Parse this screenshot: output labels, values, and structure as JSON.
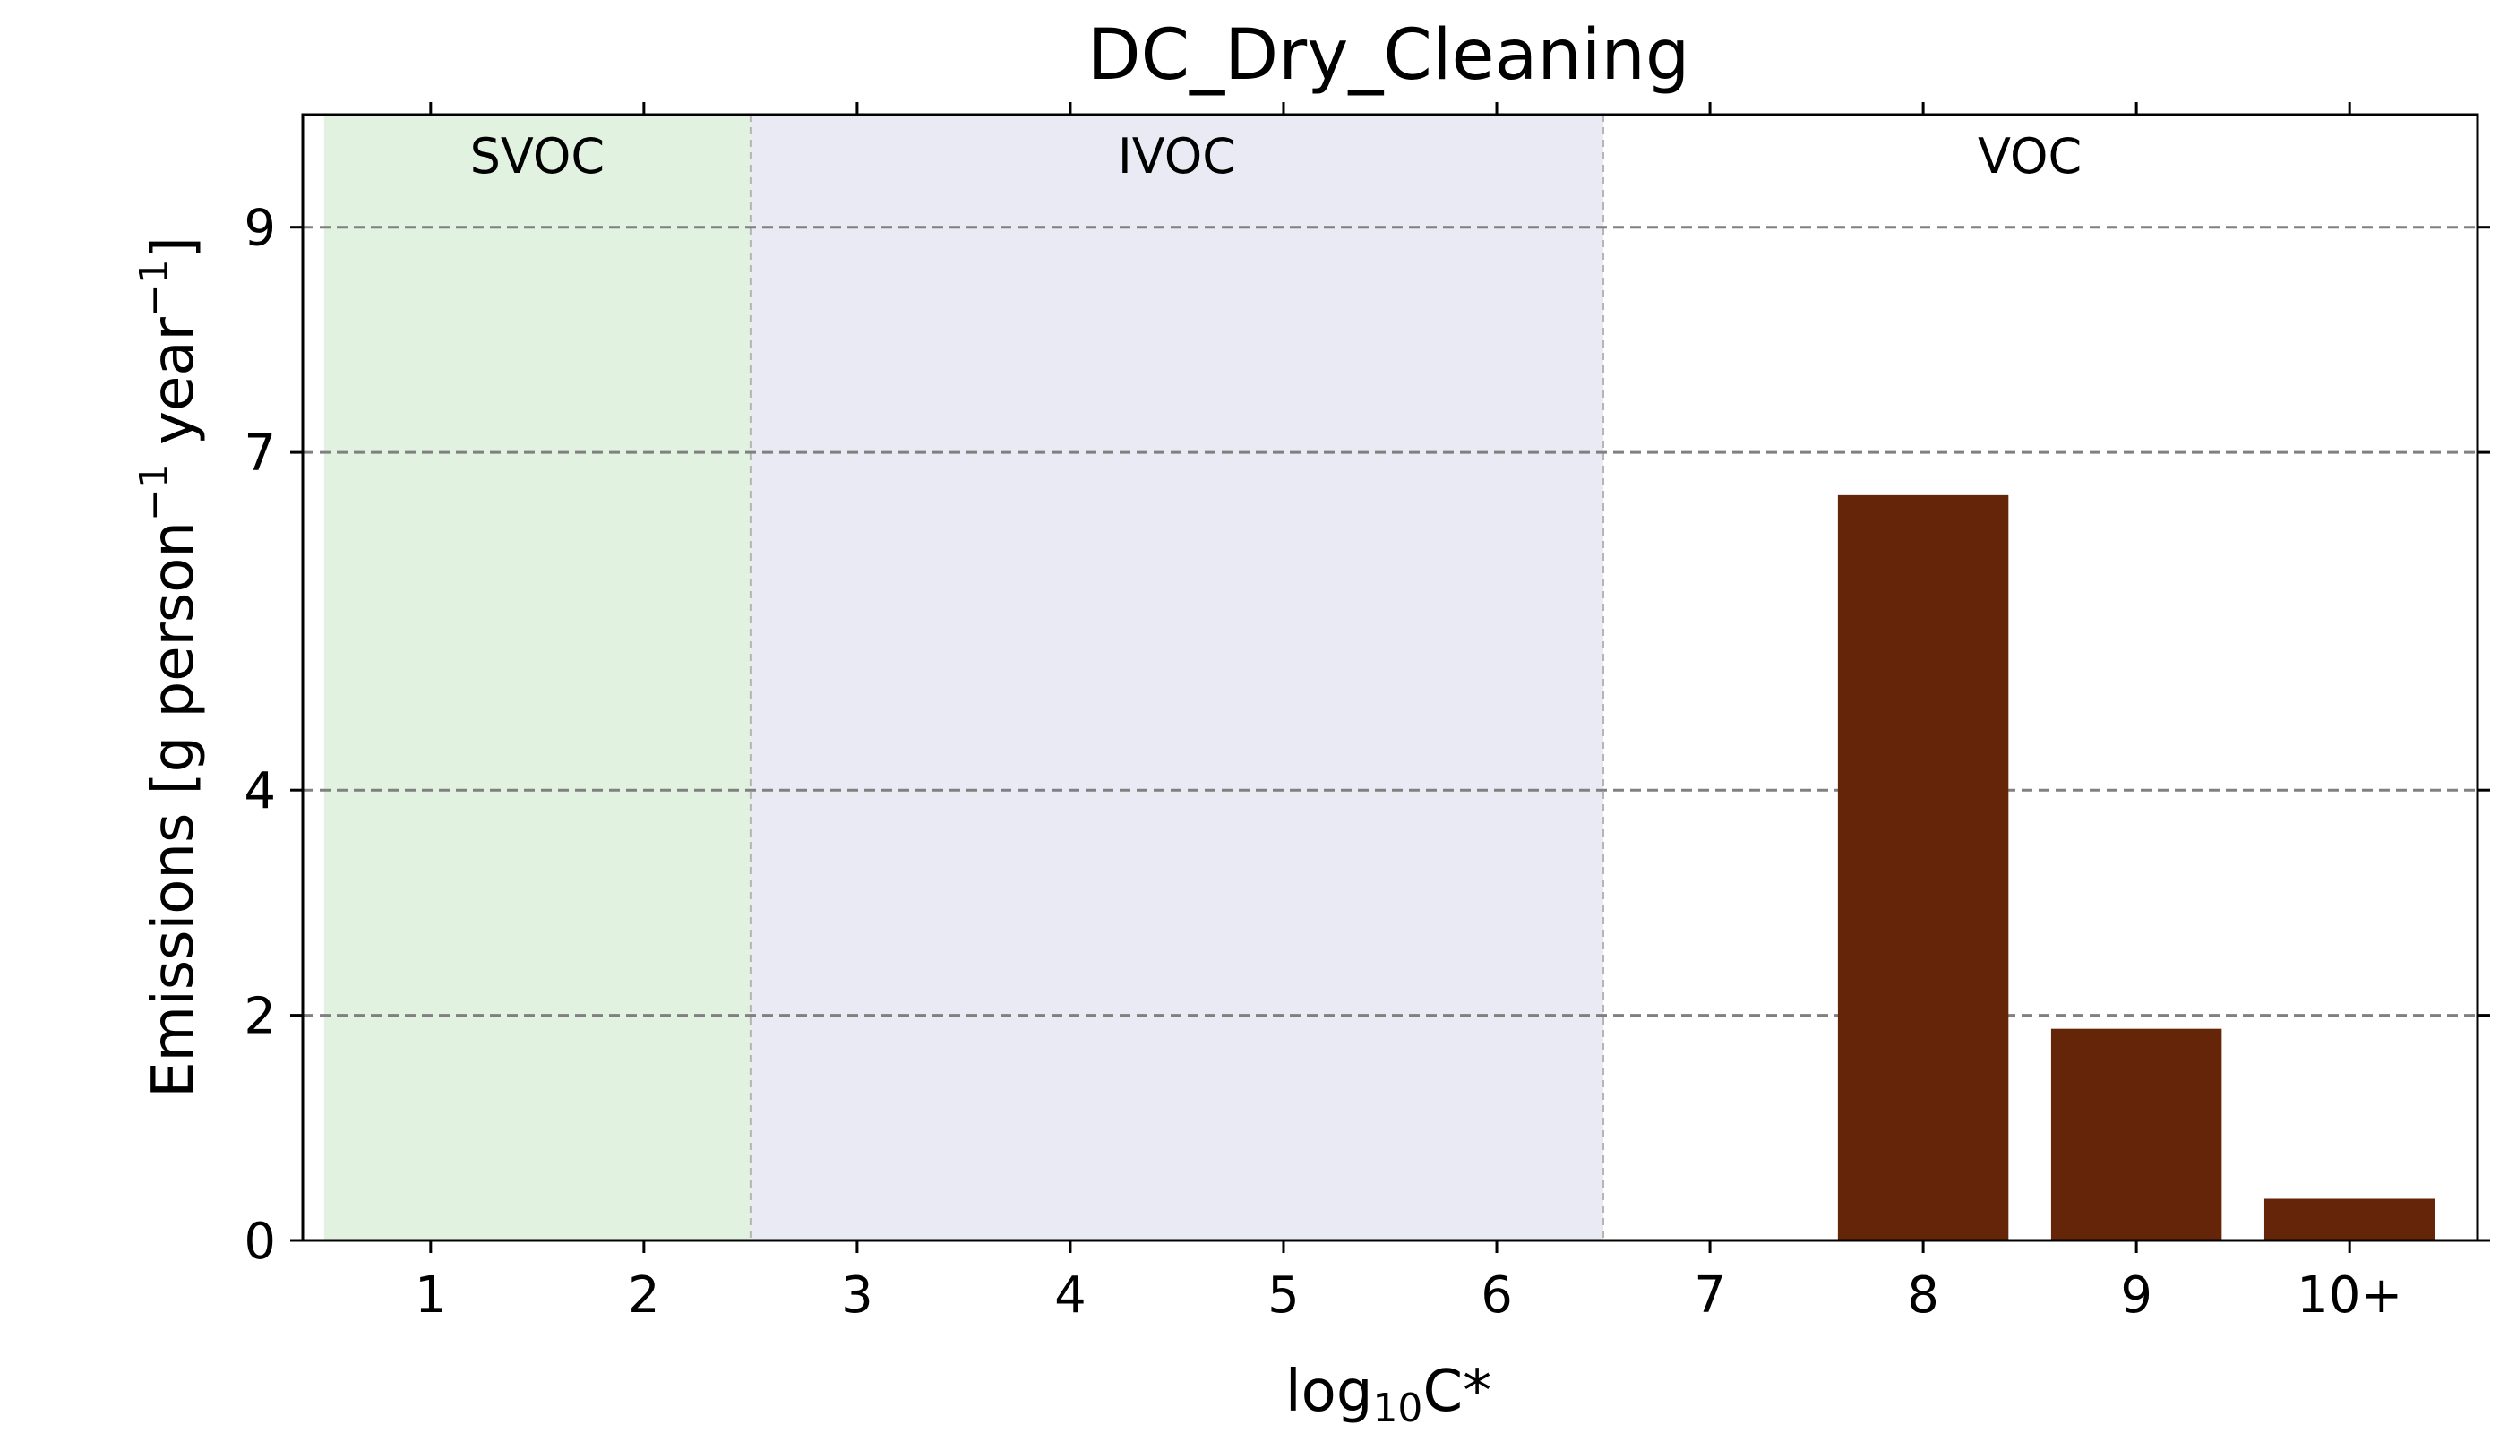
{
  "chart_data": {
    "type": "bar",
    "title": "DC_Dry_Cleaning",
    "xlabel": "log",
    "xlabel_sub": "10",
    "xlabel_suffix": "C*",
    "ylabel": "Emissions [g person",
    "ylabel_sup1": "−1",
    "ylabel_mid": " year",
    "ylabel_sup2": "−1",
    "ylabel_end": "]",
    "categories": [
      "1",
      "2",
      "3",
      "4",
      "5",
      "6",
      "7",
      "8",
      "9",
      "10+"
    ],
    "values": [
      0,
      0,
      0,
      0,
      0,
      0,
      0,
      6.62,
      1.88,
      0.37
    ],
    "yticks": [
      "0",
      "2",
      "4",
      "7",
      "9"
    ],
    "ylim": [
      0,
      10
    ],
    "gridlines_y": [
      2,
      4,
      7,
      9
    ],
    "bar_color": "#642508",
    "regions": [
      {
        "label": "SVOC",
        "from_category": 0,
        "to_category": 1,
        "color": "#e1f2e0"
      },
      {
        "label": "IVOC",
        "from_category": 2,
        "to_category": 5,
        "color": "#eaeaf4"
      },
      {
        "label": "VOC",
        "from_category": 6,
        "to_category": 9,
        "color": "#ffffff"
      }
    ]
  }
}
